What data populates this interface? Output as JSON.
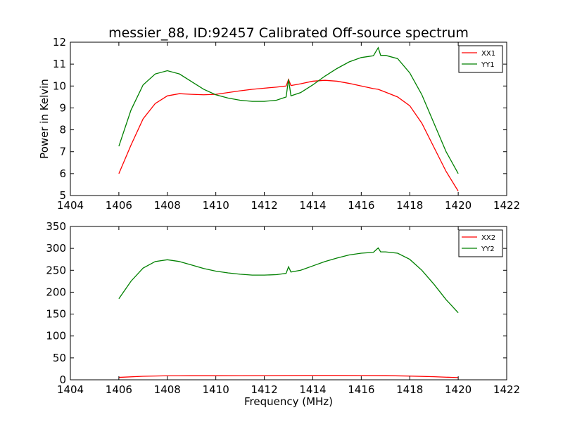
{
  "figure": {
    "title": "messier_88, ID:92457 Calibrated Off-source spectrum"
  },
  "chart_data": [
    {
      "type": "line",
      "ylabel": "Power in Kelvin",
      "xlabel": "",
      "xlim": [
        1404,
        1422
      ],
      "ylim": [
        5,
        12
      ],
      "xticks": [
        1404,
        1406,
        1408,
        1410,
        1412,
        1414,
        1416,
        1418,
        1420,
        1422
      ],
      "yticks": [
        5,
        6,
        7,
        8,
        9,
        10,
        11,
        12
      ],
      "grid": false,
      "legend": "top-right",
      "series": [
        {
          "name": "XX1",
          "color": "#ff0000",
          "x": [
            1406.0,
            1406.5,
            1407.0,
            1407.5,
            1408.0,
            1408.5,
            1409.0,
            1409.5,
            1410.0,
            1410.5,
            1411.0,
            1411.5,
            1412.0,
            1412.5,
            1412.9,
            1413.0,
            1413.1,
            1413.5,
            1414.0,
            1414.5,
            1415.0,
            1415.5,
            1416.0,
            1416.5,
            1416.7,
            1417.0,
            1417.5,
            1418.0,
            1418.5,
            1419.0,
            1419.5,
            1420.0
          ],
          "y": [
            6.0,
            7.3,
            8.5,
            9.2,
            9.55,
            9.65,
            9.62,
            9.6,
            9.62,
            9.7,
            9.78,
            9.85,
            9.9,
            9.95,
            10.0,
            10.3,
            10.02,
            10.1,
            10.22,
            10.26,
            10.22,
            10.12,
            10.0,
            9.88,
            9.85,
            9.72,
            9.5,
            9.1,
            8.3,
            7.2,
            6.1,
            5.2
          ]
        },
        {
          "name": "YY1",
          "color": "#008000",
          "x": [
            1406.0,
            1406.5,
            1407.0,
            1407.5,
            1408.0,
            1408.5,
            1409.0,
            1409.5,
            1410.0,
            1410.5,
            1411.0,
            1411.5,
            1412.0,
            1412.5,
            1412.9,
            1413.0,
            1413.1,
            1413.5,
            1414.0,
            1414.5,
            1415.0,
            1415.5,
            1416.0,
            1416.5,
            1416.7,
            1416.8,
            1417.0,
            1417.5,
            1418.0,
            1418.5,
            1419.0,
            1419.5,
            1420.0
          ],
          "y": [
            7.25,
            8.9,
            10.05,
            10.55,
            10.7,
            10.55,
            10.2,
            9.85,
            9.6,
            9.45,
            9.35,
            9.3,
            9.3,
            9.35,
            9.5,
            10.3,
            9.55,
            9.7,
            10.05,
            10.45,
            10.8,
            11.1,
            11.3,
            11.38,
            11.75,
            11.4,
            11.4,
            11.25,
            10.6,
            9.6,
            8.3,
            7.0,
            6.0
          ]
        }
      ]
    },
    {
      "type": "line",
      "xlabel": "Frequency (MHz)",
      "ylabel": "",
      "xlim": [
        1404,
        1422
      ],
      "ylim": [
        0,
        350
      ],
      "xticks": [
        1404,
        1406,
        1408,
        1410,
        1412,
        1414,
        1416,
        1418,
        1420,
        1422
      ],
      "yticks": [
        0,
        50,
        100,
        150,
        200,
        250,
        300,
        350
      ],
      "grid": false,
      "legend": "top-right",
      "series": [
        {
          "name": "XX2",
          "color": "#ff0000",
          "x": [
            1406.0,
            1407.0,
            1408.0,
            1409.0,
            1410.0,
            1411.0,
            1412.0,
            1413.0,
            1414.0,
            1415.0,
            1416.0,
            1417.0,
            1418.0,
            1419.0,
            1420.0
          ],
          "y": [
            5.5,
            8.0,
            9.2,
            9.3,
            9.3,
            9.4,
            9.6,
            9.8,
            10.0,
            10.0,
            9.8,
            9.5,
            8.5,
            7.0,
            5.0
          ]
        },
        {
          "name": "YY2",
          "color": "#008000",
          "x": [
            1406.0,
            1406.5,
            1407.0,
            1407.5,
            1408.0,
            1408.5,
            1409.0,
            1409.5,
            1410.0,
            1410.5,
            1411.0,
            1411.5,
            1412.0,
            1412.5,
            1412.9,
            1413.0,
            1413.1,
            1413.5,
            1414.0,
            1414.5,
            1415.0,
            1415.5,
            1416.0,
            1416.5,
            1416.7,
            1416.8,
            1417.0,
            1417.5,
            1418.0,
            1418.5,
            1419.0,
            1419.5,
            1420.0
          ],
          "y": [
            185,
            225,
            255,
            270,
            274,
            270,
            262,
            254,
            248,
            244,
            241,
            239,
            239,
            240,
            243,
            258,
            246,
            250,
            260,
            270,
            278,
            285,
            289,
            291,
            301,
            292,
            292,
            289,
            275,
            250,
            218,
            183,
            153
          ]
        }
      ]
    }
  ]
}
